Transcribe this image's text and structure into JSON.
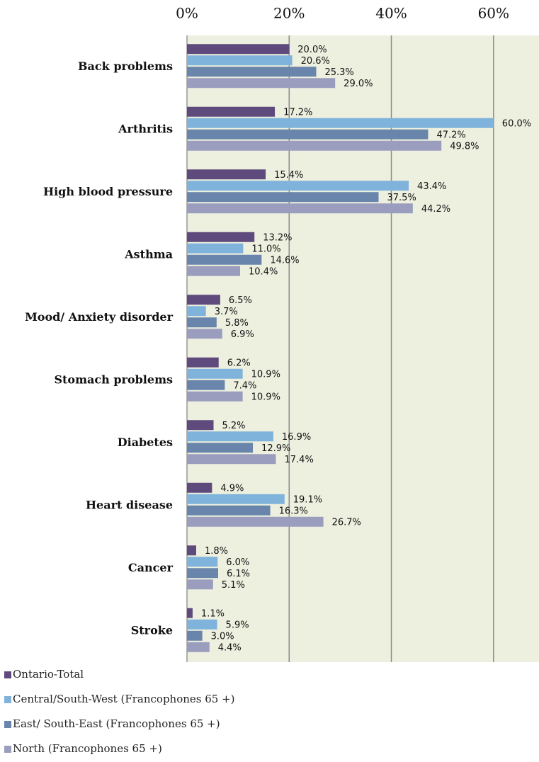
{
  "chart_data": {
    "type": "hbar",
    "categories": [
      "Back problems",
      "Arthritis",
      "High blood pressure",
      "Asthma",
      "Mood/ Anxiety disorder",
      "Stomach problems",
      "Diabetes",
      "Heart disease",
      "Cancer",
      "Stroke"
    ],
    "series": [
      {
        "name": "Ontario-Total",
        "color": "#5e4a7c",
        "values": [
          20.0,
          17.2,
          15.4,
          13.2,
          6.5,
          6.2,
          5.2,
          4.9,
          1.8,
          1.1
        ],
        "value_labels": [
          "20.0%",
          "17.2%",
          "15.4%",
          "13.2%",
          "6.5%",
          "6.2%",
          "5.2%",
          "4.9%",
          "1.8%",
          "1.1%"
        ]
      },
      {
        "name": "Central/South-West (Francophones 65 +)",
        "color": "#80b3db",
        "values": [
          20.6,
          60.0,
          43.4,
          11.0,
          3.7,
          10.9,
          16.9,
          19.1,
          6.0,
          5.9
        ],
        "value_labels": [
          "20.6%",
          "60.0%",
          "43.4%",
          "11.0%",
          "3.7%",
          "10.9%",
          "16.9%",
          "19.1%",
          "6.0%",
          "5.9%"
        ]
      },
      {
        "name": "East/ South-East (Francophones 65 +)",
        "color": "#6a85ab",
        "values": [
          25.3,
          47.2,
          37.5,
          14.6,
          5.8,
          7.4,
          12.9,
          16.3,
          6.1,
          3.0
        ],
        "value_labels": [
          "25.3%",
          "47.2%",
          "37.5%",
          "14.6%",
          "5.8%",
          "7.4%",
          "12.9%",
          "16.3%",
          "6.1%",
          "3.0%"
        ]
      },
      {
        "name": "North (Francophones 65 +)",
        "color": "#9b9dbe",
        "values": [
          29.0,
          49.8,
          44.2,
          10.4,
          6.9,
          10.9,
          17.4,
          26.7,
          5.1,
          4.4
        ],
        "value_labels": [
          "29.0%",
          "49.8%",
          "44.2%",
          "10.4%",
          "6.9%",
          "10.9%",
          "17.4%",
          "26.7%",
          "5.1%",
          "4.4%"
        ]
      }
    ],
    "xlim": [
      0,
      68.9
    ],
    "xticks": [
      {
        "value": 0,
        "label": "0%"
      },
      {
        "value": 20,
        "label": "20%"
      },
      {
        "value": 40,
        "label": "40%"
      },
      {
        "value": 60,
        "label": "60%"
      }
    ],
    "grid": true,
    "legend": "bottom-left"
  }
}
